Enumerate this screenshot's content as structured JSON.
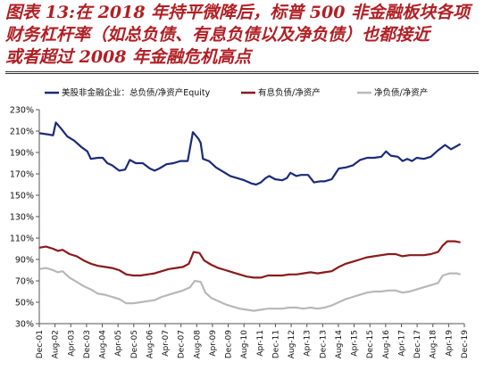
{
  "figure": {
    "title_lines": [
      "图表 13:在 2018 年持平微降后，标普 500 非金融板块各项",
      "财务杠杆率（如总负债、有息负债以及净负债）也都接近",
      "或者超过 2008 年金融危机高点"
    ]
  },
  "chart_data": {
    "type": "line",
    "title": "图表 13:在 2018 年持平微降后，标普 500 非金融板块各项财务杠杆率（如总负债、有息负债以及净负债）也都接近或者超过 2008 年金融危机高点",
    "xlabel": "",
    "ylabel": "",
    "ylim": [
      30,
      230
    ],
    "yticks": [
      "30%",
      "50%",
      "70%",
      "90%",
      "110%",
      "130%",
      "150%",
      "170%",
      "190%",
      "210%",
      "230%"
    ],
    "xlim": [
      2001.917,
      2019.917
    ],
    "xticks": [
      "Dec-01",
      "Aug-02",
      "Apr-03",
      "Dec-03",
      "Aug-04",
      "Apr-05",
      "Dec-05",
      "Aug-06",
      "Apr-07",
      "Dec-07",
      "Aug-08",
      "Apr-09",
      "Dec-09",
      "Aug-10",
      "Apr-11",
      "Dec-11",
      "Aug-12",
      "Apr-13",
      "Dec-13",
      "Aug-14",
      "Apr-15",
      "Dec-15",
      "Aug-16",
      "Apr-17",
      "Dec-17",
      "Aug-18",
      "Apr-19",
      "Dec-19"
    ],
    "grid": false,
    "legend_position": "top",
    "series": [
      {
        "name": "美股非金融企业：总负债/净资产Equity",
        "color": "#1b2a7a",
        "points": [
          [
            2001.92,
            208
          ],
          [
            2002.25,
            207
          ],
          [
            2002.5,
            206
          ],
          [
            2002.62,
            218
          ],
          [
            2002.85,
            212
          ],
          [
            2003.1,
            205
          ],
          [
            2003.4,
            201
          ],
          [
            2003.7,
            195
          ],
          [
            2003.95,
            191
          ],
          [
            2004.1,
            184
          ],
          [
            2004.4,
            185
          ],
          [
            2004.6,
            185
          ],
          [
            2004.8,
            180
          ],
          [
            2005.0,
            178
          ],
          [
            2005.3,
            173
          ],
          [
            2005.55,
            174
          ],
          [
            2005.75,
            183
          ],
          [
            2006.0,
            180
          ],
          [
            2006.3,
            180
          ],
          [
            2006.6,
            175
          ],
          [
            2006.8,
            173
          ],
          [
            2007.0,
            175
          ],
          [
            2007.3,
            179
          ],
          [
            2007.6,
            180
          ],
          [
            2007.9,
            182
          ],
          [
            2008.2,
            182
          ],
          [
            2008.42,
            209
          ],
          [
            2008.65,
            203
          ],
          [
            2008.75,
            199
          ],
          [
            2008.85,
            184
          ],
          [
            2009.1,
            182
          ],
          [
            2009.4,
            176
          ],
          [
            2009.7,
            172
          ],
          [
            2010.0,
            168
          ],
          [
            2010.3,
            166
          ],
          [
            2010.6,
            164
          ],
          [
            2010.9,
            161
          ],
          [
            2011.1,
            160
          ],
          [
            2011.3,
            162
          ],
          [
            2011.5,
            166
          ],
          [
            2011.65,
            168
          ],
          [
            2011.9,
            165
          ],
          [
            2012.2,
            164
          ],
          [
            2012.4,
            166
          ],
          [
            2012.55,
            171
          ],
          [
            2012.8,
            168
          ],
          [
            2013.0,
            169
          ],
          [
            2013.3,
            169
          ],
          [
            2013.55,
            162
          ],
          [
            2013.8,
            163
          ],
          [
            2014.0,
            163
          ],
          [
            2014.3,
            165
          ],
          [
            2014.6,
            175
          ],
          [
            2014.9,
            176
          ],
          [
            2015.2,
            178
          ],
          [
            2015.5,
            183
          ],
          [
            2015.8,
            185
          ],
          [
            2016.1,
            185
          ],
          [
            2016.4,
            186
          ],
          [
            2016.6,
            191
          ],
          [
            2016.8,
            187
          ],
          [
            2017.1,
            186
          ],
          [
            2017.3,
            182
          ],
          [
            2017.5,
            184
          ],
          [
            2017.7,
            182
          ],
          [
            2017.9,
            185
          ],
          [
            2018.2,
            184
          ],
          [
            2018.5,
            186
          ],
          [
            2018.8,
            192
          ],
          [
            2019.1,
            197
          ],
          [
            2019.35,
            193
          ],
          [
            2019.6,
            196
          ],
          [
            2019.75,
            198
          ]
        ]
      },
      {
        "name": "有息负债/净资产",
        "color": "#8b1a1a",
        "points": [
          [
            2001.92,
            101
          ],
          [
            2002.2,
            102
          ],
          [
            2002.5,
            100
          ],
          [
            2002.7,
            98
          ],
          [
            2002.9,
            99
          ],
          [
            2003.2,
            95
          ],
          [
            2003.5,
            93
          ],
          [
            2003.8,
            89
          ],
          [
            2004.1,
            86
          ],
          [
            2004.4,
            84
          ],
          [
            2004.7,
            83
          ],
          [
            2005.0,
            82
          ],
          [
            2005.3,
            80
          ],
          [
            2005.6,
            76
          ],
          [
            2005.9,
            75
          ],
          [
            2006.2,
            75
          ],
          [
            2006.5,
            76
          ],
          [
            2006.8,
            77
          ],
          [
            2007.1,
            79
          ],
          [
            2007.4,
            81
          ],
          [
            2007.7,
            82
          ],
          [
            2008.0,
            83
          ],
          [
            2008.25,
            86
          ],
          [
            2008.45,
            97
          ],
          [
            2008.7,
            96
          ],
          [
            2008.9,
            89
          ],
          [
            2009.2,
            85
          ],
          [
            2009.5,
            82
          ],
          [
            2009.8,
            80
          ],
          [
            2010.1,
            78
          ],
          [
            2010.4,
            76
          ],
          [
            2010.7,
            74
          ],
          [
            2011.0,
            73
          ],
          [
            2011.3,
            73
          ],
          [
            2011.6,
            75
          ],
          [
            2011.9,
            75
          ],
          [
            2012.2,
            75
          ],
          [
            2012.5,
            76
          ],
          [
            2012.8,
            76
          ],
          [
            2013.1,
            77
          ],
          [
            2013.4,
            78
          ],
          [
            2013.7,
            77
          ],
          [
            2014.0,
            78
          ],
          [
            2014.3,
            79
          ],
          [
            2014.6,
            83
          ],
          [
            2014.9,
            86
          ],
          [
            2015.2,
            88
          ],
          [
            2015.5,
            90
          ],
          [
            2015.8,
            92
          ],
          [
            2016.1,
            93
          ],
          [
            2016.4,
            94
          ],
          [
            2016.7,
            95
          ],
          [
            2017.0,
            95
          ],
          [
            2017.3,
            93
          ],
          [
            2017.6,
            94
          ],
          [
            2017.9,
            94
          ],
          [
            2018.2,
            94
          ],
          [
            2018.5,
            95
          ],
          [
            2018.8,
            97
          ],
          [
            2019.0,
            103
          ],
          [
            2019.2,
            107
          ],
          [
            2019.5,
            107
          ],
          [
            2019.75,
            106
          ]
        ]
      },
      {
        "name": "净负债/净资产",
        "color": "#b8b8b8",
        "points": [
          [
            2001.92,
            81
          ],
          [
            2002.2,
            82
          ],
          [
            2002.5,
            80
          ],
          [
            2002.7,
            78
          ],
          [
            2002.9,
            79
          ],
          [
            2003.2,
            73
          ],
          [
            2003.5,
            69
          ],
          [
            2003.8,
            65
          ],
          [
            2004.1,
            62
          ],
          [
            2004.4,
            58
          ],
          [
            2004.7,
            57
          ],
          [
            2005.0,
            55
          ],
          [
            2005.3,
            53
          ],
          [
            2005.6,
            49
          ],
          [
            2005.9,
            49
          ],
          [
            2006.2,
            50
          ],
          [
            2006.5,
            51
          ],
          [
            2006.8,
            52
          ],
          [
            2007.1,
            55
          ],
          [
            2007.4,
            57
          ],
          [
            2007.7,
            59
          ],
          [
            2008.0,
            61
          ],
          [
            2008.3,
            64
          ],
          [
            2008.5,
            70
          ],
          [
            2008.75,
            69
          ],
          [
            2008.95,
            59
          ],
          [
            2009.2,
            54
          ],
          [
            2009.5,
            51
          ],
          [
            2009.8,
            48
          ],
          [
            2010.1,
            46
          ],
          [
            2010.4,
            44
          ],
          [
            2010.7,
            43
          ],
          [
            2011.0,
            42
          ],
          [
            2011.3,
            43
          ],
          [
            2011.6,
            44
          ],
          [
            2011.9,
            44
          ],
          [
            2012.2,
            44
          ],
          [
            2012.5,
            45
          ],
          [
            2012.8,
            45
          ],
          [
            2013.1,
            44
          ],
          [
            2013.4,
            45
          ],
          [
            2013.7,
            44
          ],
          [
            2014.0,
            45
          ],
          [
            2014.3,
            47
          ],
          [
            2014.6,
            50
          ],
          [
            2014.9,
            53
          ],
          [
            2015.2,
            55
          ],
          [
            2015.5,
            57
          ],
          [
            2015.8,
            59
          ],
          [
            2016.1,
            60
          ],
          [
            2016.4,
            60
          ],
          [
            2016.7,
            61
          ],
          [
            2017.0,
            61
          ],
          [
            2017.3,
            59
          ],
          [
            2017.6,
            60
          ],
          [
            2017.9,
            62
          ],
          [
            2018.2,
            64
          ],
          [
            2018.5,
            66
          ],
          [
            2018.8,
            68
          ],
          [
            2019.0,
            75
          ],
          [
            2019.3,
            77
          ],
          [
            2019.6,
            77
          ],
          [
            2019.75,
            76
          ]
        ]
      }
    ]
  }
}
